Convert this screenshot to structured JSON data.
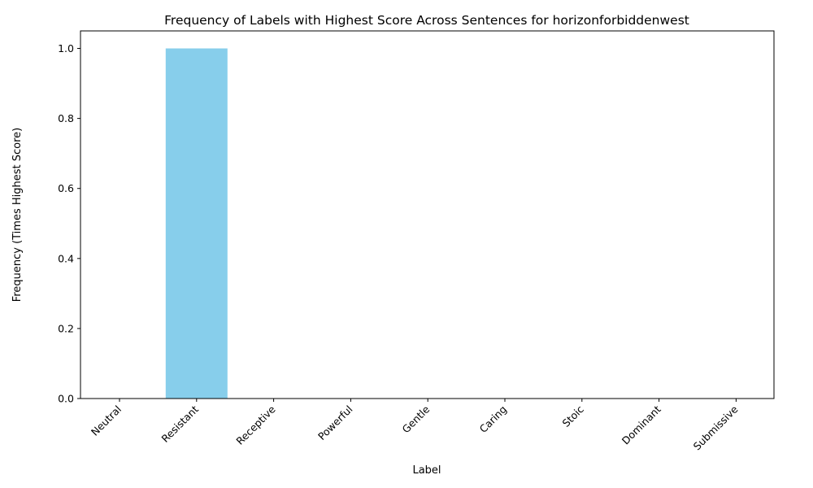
{
  "chart_data": {
    "type": "bar",
    "title": "Frequency of Labels with Highest Score Across Sentences for horizonforbiddenwest",
    "xlabel": "Label",
    "ylabel": "Frequency (Times Highest Score)",
    "categories": [
      "Neutral",
      "Resistant",
      "Receptive",
      "Powerful",
      "Gentle",
      "Caring",
      "Stoic",
      "Dominant",
      "Submissive"
    ],
    "values": [
      0,
      1,
      0,
      0,
      0,
      0,
      0,
      0,
      0
    ],
    "ylim": [
      0,
      1.05
    ],
    "yticks": [
      "0.0",
      "0.2",
      "0.4",
      "0.6",
      "0.8",
      "1.0"
    ],
    "bar_color": "#87ceeb",
    "grid": false,
    "legend": "none"
  }
}
